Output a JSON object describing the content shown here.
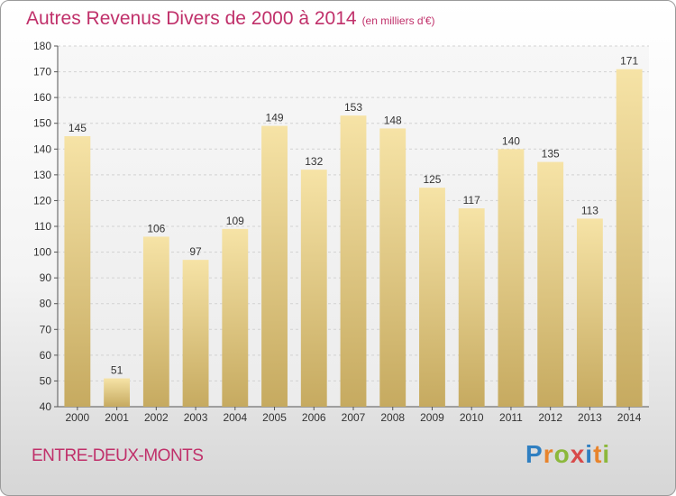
{
  "title": "Autres Revenus Divers de 2000 à 2014",
  "unit_label": "(en milliers d'€)",
  "place": "ENTRE-DEUX-MONTS",
  "logo": {
    "p": "P",
    "r": "r",
    "o": "o",
    "x": "x",
    "i": "i",
    "t": "t",
    "i2": "i"
  },
  "colors": {
    "bar_light": "#f3dc98",
    "bar_dark": "#c8ac63",
    "title": "#c0306a"
  },
  "chart_data": {
    "type": "bar",
    "categories": [
      "2000",
      "2001",
      "2002",
      "2003",
      "2004",
      "2005",
      "2006",
      "2007",
      "2008",
      "2009",
      "2010",
      "2011",
      "2012",
      "2013",
      "2014"
    ],
    "values": [
      145,
      51,
      106,
      97,
      109,
      149,
      132,
      153,
      148,
      125,
      117,
      140,
      135,
      113,
      171
    ],
    "ylim": [
      40,
      180
    ],
    "yticks": [
      40,
      50,
      60,
      70,
      80,
      90,
      100,
      110,
      120,
      130,
      140,
      150,
      160,
      170,
      180
    ],
    "grid": true,
    "data_labels": true
  }
}
